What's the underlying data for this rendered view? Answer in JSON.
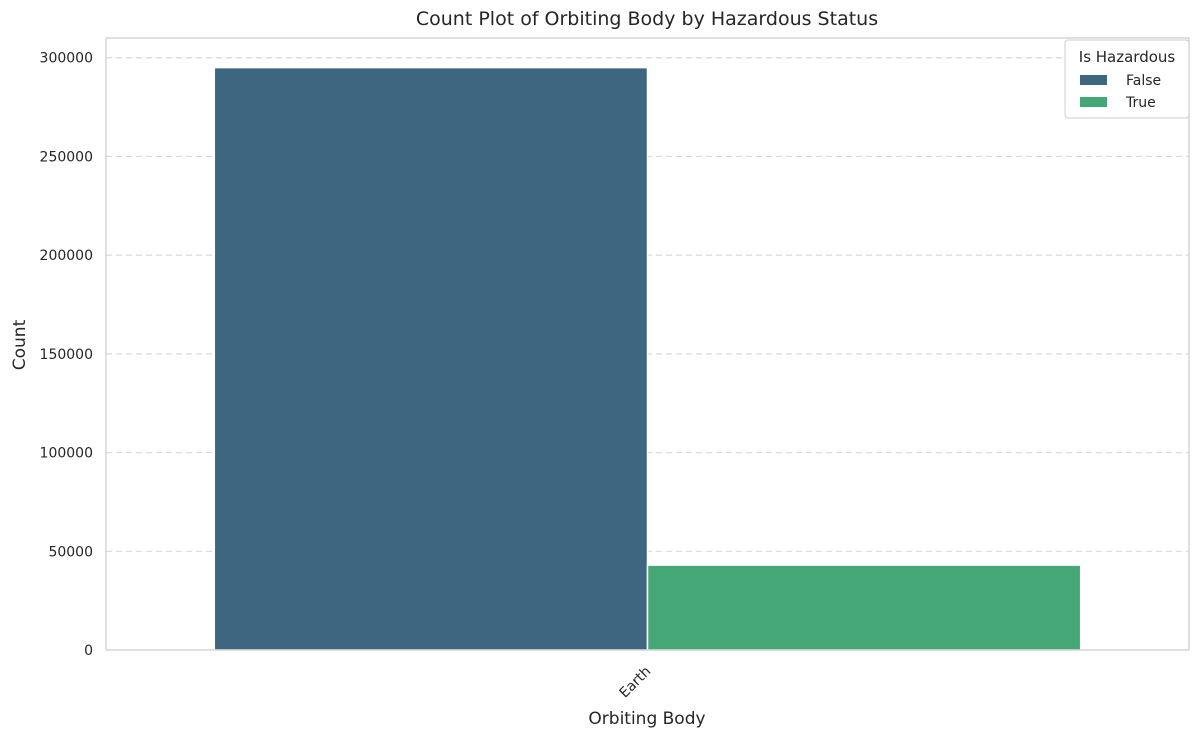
{
  "chart_data": {
    "type": "bar",
    "title": "Count Plot of Orbiting Body by Hazardous Status",
    "xlabel": "Orbiting Body",
    "ylabel": "Count",
    "categories": [
      "Earth"
    ],
    "series": [
      {
        "name": "False",
        "values": [
          295000
        ],
        "color": "#3e6680"
      },
      {
        "name": "True",
        "values": [
          43000
        ],
        "color": "#46a776"
      }
    ],
    "ylim": [
      0,
      310000
    ],
    "yticks": [
      0,
      50000,
      100000,
      150000,
      200000,
      250000,
      300000
    ],
    "grid": true,
    "legend": {
      "title": "Is Hazardous",
      "placement": "top-right"
    }
  }
}
